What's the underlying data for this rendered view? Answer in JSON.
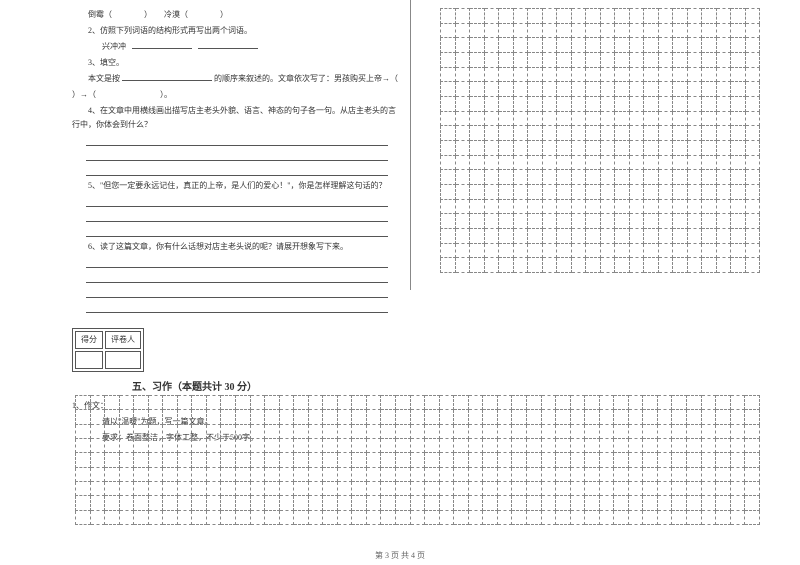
{
  "q_pinyin": "倒霉（　　　　）　　冷漠（　　　　）",
  "q2": "2、仿照下列词语的结构形式再写出两个词语。",
  "q2_example": "兴冲冲",
  "q3": "3、填空。",
  "q3_text_a": "本文是按",
  "q3_text_b": "的顺序来叙述的。文章依次写了：男孩购买上帝→（",
  "q3_text_c": "）→（　　　　　　　　）。",
  "q4": "4、在文章中用横线画出描写店主老头外貌、语言、神态的句子各一句。从店主老头的言行中，你体会到什么？",
  "q5": "5、\"但您一定要永远记住，真正的上帝，是人们的爱心！\"，你是怎样理解这句话的？",
  "q6": "6、读了这篇文章，你有什么话想对店主老头说的呢？请展开想象写下来。",
  "score_label1": "得分",
  "score_label2": "评卷人",
  "section5_title": "五、习作（本题共计 30 分）",
  "essay_num": "1、作文：",
  "essay_prompt": "请以\"温暖\"为题，写一篇文章。",
  "essay_req": "要求：卷面整洁，字体工整，不少于500字。",
  "footer": "第 3 页  共 4 页",
  "grid_right": {
    "rows": 18,
    "cols": 22,
    "cell_border": "#888888"
  },
  "grid_bottom": {
    "rows": 9,
    "cols": 47,
    "cell_border": "#888888"
  }
}
